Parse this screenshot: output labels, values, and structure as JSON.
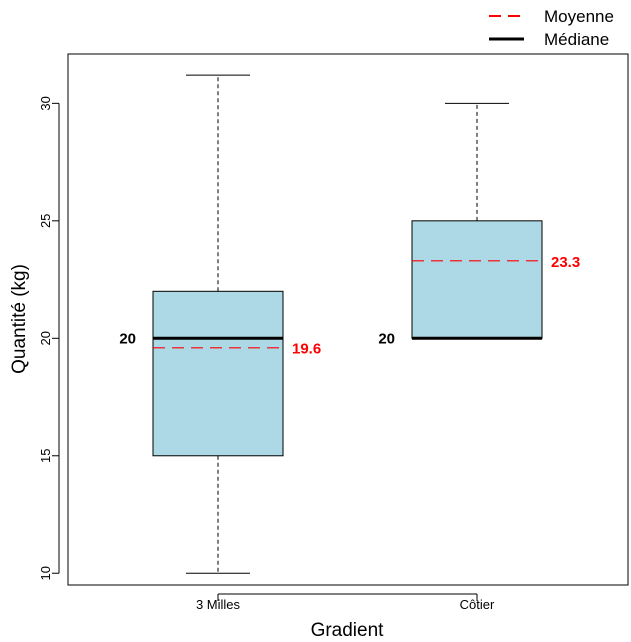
{
  "chart_data": {
    "type": "box",
    "xlabel": "Gradient",
    "ylabel": "Quantité (kg)",
    "ylim": [
      9.5,
      32.1
    ],
    "yticks": [
      10,
      15,
      20,
      25,
      30
    ],
    "grid": false,
    "legend_position": "top-right",
    "legend": [
      {
        "label": "Moyenne",
        "style": "dashed",
        "color": "#ff0000"
      },
      {
        "label": "Médiane",
        "style": "solid",
        "color": "#000000"
      }
    ],
    "box_color": "#add8e6",
    "categories": [
      "3 Milles",
      "Côtier"
    ],
    "boxes": [
      {
        "category": "3 Milles",
        "min": 10,
        "q1": 15,
        "median": 20,
        "q3": 22,
        "max": 31.2,
        "mean": 19.6,
        "median_label": "20",
        "mean_label": "19.6"
      },
      {
        "category": "Côtier",
        "min": 20,
        "q1": 20,
        "median": 20,
        "q3": 25,
        "max": 30,
        "mean": 23.3,
        "median_label": "20",
        "mean_label": "23.3"
      }
    ]
  }
}
